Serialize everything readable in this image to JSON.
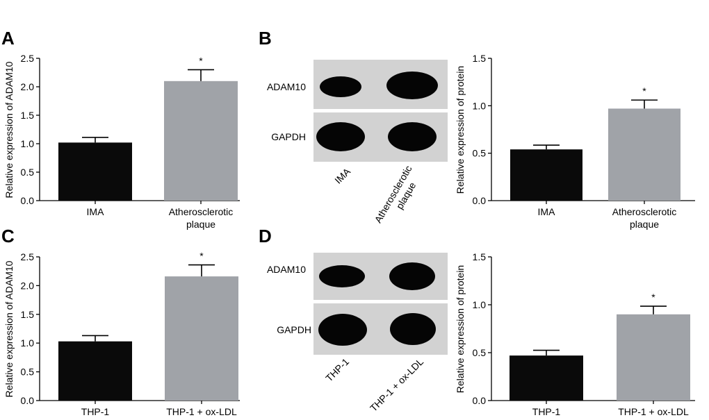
{
  "panels": {
    "A": "A",
    "B": "B",
    "C": "C",
    "D": "D"
  },
  "blots": {
    "B": {
      "row_labels": [
        "ADAM10",
        "GAPDH"
      ],
      "lane_labels": [
        "IMA",
        "Atherosclerotic\nplaque"
      ]
    },
    "D": {
      "row_labels": [
        "ADAM10",
        "GAPDH"
      ],
      "lane_labels": [
        "THP-1",
        "THP-1 + ox-LDL"
      ]
    }
  },
  "colors": {
    "group1": "#0a0a0a",
    "group2": "#a0a3a8",
    "blot_bg": "#d2d2d2",
    "band": "#050505"
  },
  "chart_data": [
    {
      "id": "A",
      "type": "bar",
      "ylabel": "Relative expression of ADAM10",
      "ylim": [
        0,
        2.5
      ],
      "yticks": [
        "0.0",
        "0.5",
        "1.0",
        "1.5",
        "2.0",
        "2.5"
      ],
      "categories": [
        "IMA",
        "Atherosclerotic\nplaque"
      ],
      "values": [
        1.02,
        2.1
      ],
      "errors": [
        0.09,
        0.2
      ],
      "significance": [
        "",
        "*"
      ]
    },
    {
      "id": "B",
      "type": "bar",
      "ylabel": "Relative expression of protein",
      "ylim": [
        0,
        1.5
      ],
      "yticks": [
        "0.0",
        "0.5",
        "1.0",
        "1.5"
      ],
      "categories": [
        "IMA",
        "Atherosclerotic\nplaque"
      ],
      "values": [
        0.54,
        0.97
      ],
      "errors": [
        0.045,
        0.09
      ],
      "significance": [
        "",
        "*"
      ]
    },
    {
      "id": "C",
      "type": "bar",
      "ylabel": "Relative expression of ADAM10",
      "ylim": [
        0,
        2.5
      ],
      "yticks": [
        "0.0",
        "0.5",
        "1.0",
        "1.5",
        "2.0",
        "2.5"
      ],
      "categories": [
        "THP-1",
        "THP-1 + ox-LDL"
      ],
      "values": [
        1.03,
        2.16
      ],
      "errors": [
        0.1,
        0.2
      ],
      "significance": [
        "",
        "*"
      ]
    },
    {
      "id": "D",
      "type": "bar",
      "ylabel": "Relative expression of protein",
      "ylim": [
        0,
        1.5
      ],
      "yticks": [
        "0.0",
        "0.5",
        "1.0",
        "1.5"
      ],
      "categories": [
        "THP-1",
        "THP-1 + ox-LDL"
      ],
      "values": [
        0.47,
        0.9
      ],
      "errors": [
        0.055,
        0.085
      ],
      "significance": [
        "",
        "*"
      ]
    }
  ]
}
